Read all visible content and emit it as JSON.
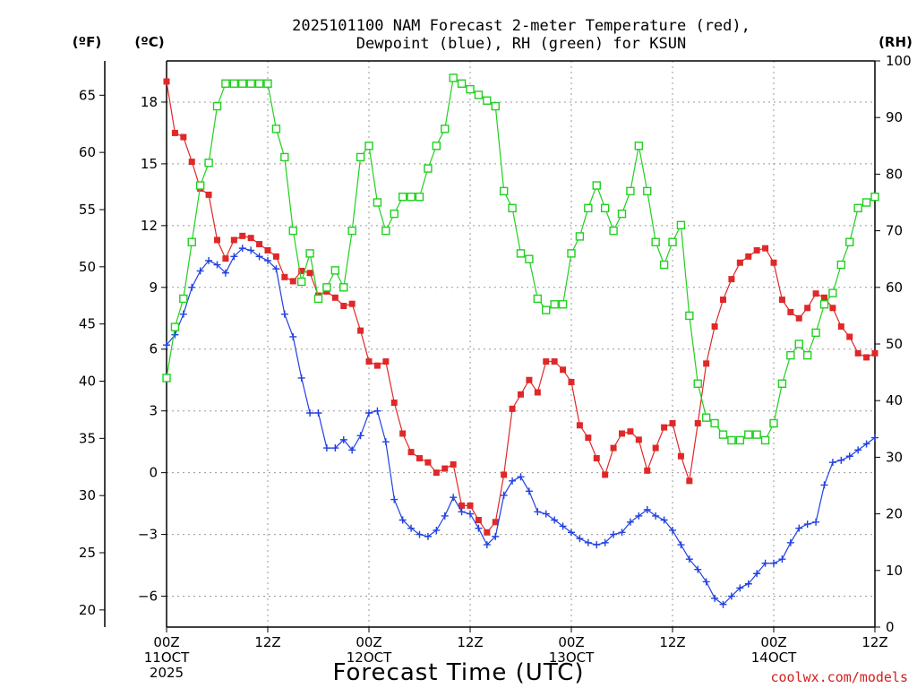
{
  "chart_data": {
    "type": "line",
    "title_line1": "2025101100 NAM Forecast 2-meter Temperature (red),",
    "title_line2": "Dewpoint (blue), RH (green) for KSUN",
    "xlabel": "Forecast Time (UTC)",
    "credit": "coolwx.com/models",
    "units": {
      "left_outer": "(ºF)",
      "left_inner": "(ºC)",
      "right": "(RH)"
    },
    "x_range_hours": [
      0,
      84
    ],
    "x_ticks": [
      {
        "hour": 0,
        "lines": [
          "00Z",
          "11OCT",
          "2025"
        ]
      },
      {
        "hour": 12,
        "lines": [
          "12Z"
        ]
      },
      {
        "hour": 24,
        "lines": [
          "00Z",
          "12OCT"
        ]
      },
      {
        "hour": 36,
        "lines": [
          "12Z"
        ]
      },
      {
        "hour": 48,
        "lines": [
          "00Z",
          "13OCT"
        ]
      },
      {
        "hour": 60,
        "lines": [
          "12Z"
        ]
      },
      {
        "hour": 72,
        "lines": [
          "00Z",
          "14OCT"
        ]
      },
      {
        "hour": 84,
        "lines": [
          "12Z"
        ]
      }
    ],
    "c_range": [
      -7.5,
      20.0
    ],
    "c_ticks": [
      "18",
      "15",
      "12",
      "9",
      "6",
      "3",
      "0",
      "−3",
      "−6"
    ],
    "c_tick_values": [
      18,
      15,
      12,
      9,
      6,
      3,
      0,
      -3,
      -6
    ],
    "f_ticks": [
      "65",
      "60",
      "55",
      "50",
      "45",
      "40",
      "35",
      "30",
      "25",
      "20"
    ],
    "f_tick_values": [
      65,
      60,
      55,
      50,
      45,
      40,
      35,
      30,
      25,
      20
    ],
    "rh_range": [
      0,
      100
    ],
    "rh_ticks": [
      "100",
      "90",
      "80",
      "70",
      "60",
      "50",
      "40",
      "30",
      "20",
      "10",
      "0"
    ],
    "rh_tick_values": [
      100,
      90,
      80,
      70,
      60,
      50,
      40,
      30,
      20,
      10,
      0
    ],
    "grid": true,
    "series": [
      {
        "name": "Temperature",
        "color": "#e02828",
        "marker": "filled-square",
        "axis": "celsius",
        "x": [
          0,
          1,
          2,
          3,
          4,
          5,
          6,
          7,
          8,
          9,
          10,
          11,
          12,
          13,
          14,
          15,
          16,
          17,
          18,
          19,
          20,
          21,
          22,
          23,
          24,
          25,
          26,
          27,
          28,
          29,
          30,
          31,
          32,
          33,
          34,
          35,
          36,
          37,
          38,
          39,
          40,
          41,
          42,
          43,
          44,
          45,
          46,
          47,
          48,
          49,
          50,
          51,
          52,
          53,
          54,
          55,
          56,
          57,
          58,
          59,
          60,
          61,
          62,
          63,
          64,
          65,
          66,
          67,
          68,
          69,
          70,
          71,
          72,
          73,
          74,
          75,
          76,
          77,
          78,
          79,
          80,
          81,
          82,
          83,
          84
        ],
        "y": [
          19.0,
          16.5,
          16.3,
          15.1,
          13.8,
          13.5,
          11.3,
          10.4,
          11.3,
          11.5,
          11.4,
          11.1,
          10.8,
          10.5,
          9.5,
          9.3,
          9.8,
          9.7,
          8.6,
          8.8,
          8.5,
          8.1,
          8.2,
          6.9,
          5.4,
          5.2,
          5.4,
          3.4,
          1.9,
          1.0,
          0.7,
          0.5,
          0.0,
          0.2,
          0.4,
          -1.6,
          -1.6,
          -2.3,
          -2.9,
          -2.4,
          -0.1,
          3.1,
          3.8,
          4.5,
          3.9,
          5.4,
          5.4,
          5.0,
          4.4,
          2.3,
          1.7,
          0.7,
          -0.1,
          1.2,
          1.9,
          2.0,
          1.6,
          0.1,
          1.2,
          2.2,
          2.4,
          0.8,
          -0.4,
          2.4,
          5.3,
          7.1,
          8.4,
          9.4,
          10.2,
          10.5,
          10.8,
          10.9,
          10.2,
          8.4,
          7.8,
          7.5,
          8.0,
          8.7,
          8.5,
          8.0,
          7.1,
          6.6,
          5.8,
          5.6,
          5.8
        ]
      },
      {
        "name": "Dewpoint",
        "color": "#2040e0",
        "marker": "plus",
        "axis": "celsius",
        "x": [
          0,
          1,
          2,
          3,
          4,
          5,
          6,
          7,
          8,
          9,
          10,
          11,
          12,
          13,
          14,
          15,
          16,
          17,
          18,
          19,
          20,
          21,
          22,
          23,
          24,
          25,
          26,
          27,
          28,
          29,
          30,
          31,
          32,
          33,
          34,
          35,
          36,
          37,
          38,
          39,
          40,
          41,
          42,
          43,
          44,
          45,
          46,
          47,
          48,
          49,
          50,
          51,
          52,
          53,
          54,
          55,
          56,
          57,
          58,
          59,
          60,
          61,
          62,
          63,
          64,
          65,
          66,
          67,
          68,
          69,
          70,
          71,
          72,
          73,
          74,
          75,
          76,
          77,
          78,
          79,
          80,
          81,
          82,
          83,
          84
        ],
        "y": [
          6.2,
          6.7,
          7.7,
          9.0,
          9.8,
          10.3,
          10.1,
          9.7,
          10.5,
          10.9,
          10.8,
          10.5,
          10.3,
          9.9,
          7.7,
          6.6,
          4.6,
          2.9,
          2.9,
          1.2,
          1.2,
          1.6,
          1.1,
          1.8,
          2.9,
          3.0,
          1.5,
          -1.3,
          -2.3,
          -2.7,
          -3.0,
          -3.1,
          -2.8,
          -2.1,
          -1.2,
          -1.9,
          -2.0,
          -2.7,
          -3.5,
          -3.1,
          -1.1,
          -0.4,
          -0.2,
          -0.9,
          -1.9,
          -2.0,
          -2.3,
          -2.6,
          -2.9,
          -3.2,
          -3.4,
          -3.5,
          -3.4,
          -3.0,
          -2.9,
          -2.4,
          -2.1,
          -1.8,
          -2.1,
          -2.3,
          -2.8,
          -3.5,
          -4.2,
          -4.7,
          -5.3,
          -6.1,
          -6.4,
          -6.0,
          -5.6,
          -5.4,
          -4.9,
          -4.4,
          -4.4,
          -4.2,
          -3.4,
          -2.7,
          -2.5,
          -2.4,
          -0.6,
          0.5,
          0.6,
          0.8,
          1.1,
          1.4,
          1.7
        ]
      },
      {
        "name": "RH",
        "color": "#20d020",
        "marker": "open-square",
        "axis": "rh",
        "x": [
          0,
          1,
          2,
          3,
          4,
          5,
          6,
          7,
          8,
          9,
          10,
          11,
          12,
          13,
          14,
          15,
          16,
          17,
          18,
          19,
          20,
          21,
          22,
          23,
          24,
          25,
          26,
          27,
          28,
          29,
          30,
          31,
          32,
          33,
          34,
          35,
          36,
          37,
          38,
          39,
          40,
          41,
          42,
          43,
          44,
          45,
          46,
          47,
          48,
          49,
          50,
          51,
          52,
          53,
          54,
          55,
          56,
          57,
          58,
          59,
          60,
          61,
          62,
          63,
          64,
          65,
          66,
          67,
          68,
          69,
          70,
          71,
          72,
          73,
          74,
          75,
          76,
          77,
          78,
          79,
          80,
          81,
          82,
          83,
          84
        ],
        "y": [
          44,
          53,
          58,
          68,
          78,
          82,
          92,
          96,
          96,
          96,
          96,
          96,
          96,
          88,
          83,
          70,
          61,
          66,
          58,
          60,
          63,
          60,
          70,
          83,
          85,
          75,
          70,
          73,
          76,
          76,
          76,
          81,
          85,
          88,
          97,
          96,
          95,
          94,
          93,
          92,
          77,
          74,
          66,
          65,
          58,
          56,
          57,
          57,
          66,
          69,
          74,
          78,
          74,
          70,
          73,
          77,
          85,
          77,
          68,
          64,
          68,
          71,
          55,
          43,
          37,
          36,
          34,
          33,
          33,
          34,
          34,
          33,
          36,
          43,
          48,
          50,
          48,
          52,
          57,
          59,
          64,
          68,
          74,
          75,
          76
        ]
      }
    ]
  }
}
